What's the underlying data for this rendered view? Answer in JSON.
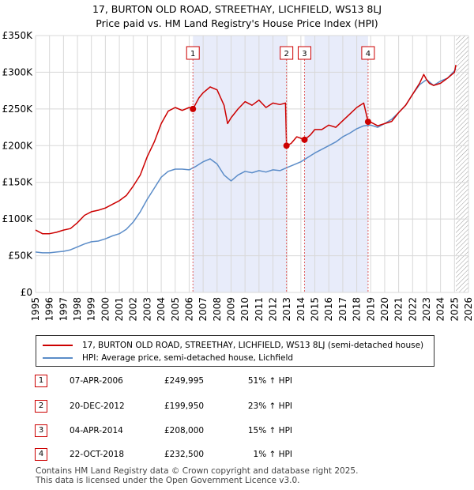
{
  "header": {
    "title_line1": "17, BURTON OLD ROAD, STREETHAY, LICHFIELD, WS13 8LJ",
    "title_line2": "Price paid vs. HM Land Registry's House Price Index (HPI)"
  },
  "chart_data": {
    "type": "line",
    "title": "17, BURTON OLD ROAD, STREETHAY, LICHFIELD, WS13 8LJ — Price paid vs. HM Land Registry's House Price Index (HPI)",
    "xlabel": "",
    "ylabel": "",
    "xlim": [
      1995,
      2026
    ],
    "ylim": [
      0,
      350000
    ],
    "grid": true,
    "x_ticks": [
      "1995",
      "1996",
      "1997",
      "1998",
      "1999",
      "2000",
      "2001",
      "2002",
      "2003",
      "2004",
      "2005",
      "2006",
      "2007",
      "2008",
      "2009",
      "2010",
      "2011",
      "2012",
      "2013",
      "2014",
      "2015",
      "2016",
      "2017",
      "2018",
      "2019",
      "2020",
      "2021",
      "2022",
      "2023",
      "2024",
      "2025",
      "2026"
    ],
    "y_ticks": [
      {
        "value": 0,
        "label": "£0"
      },
      {
        "value": 50000,
        "label": "£50K"
      },
      {
        "value": 100000,
        "label": "£100K"
      },
      {
        "value": 150000,
        "label": "£150K"
      },
      {
        "value": 200000,
        "label": "£200K"
      },
      {
        "value": 250000,
        "label": "£250K"
      },
      {
        "value": 300000,
        "label": "£300K"
      },
      {
        "value": 350000,
        "label": "£350K"
      }
    ],
    "shaded_ranges": [
      [
        2006.27,
        2012.97
      ],
      [
        2014.26,
        2018.81
      ]
    ],
    "hatched_from": 2025.1,
    "series": [
      {
        "name": "17, BURTON OLD ROAD, STREETHAY, LICHFIELD, WS13 8LJ (semi-detached house)",
        "color": "#cc0000",
        "x": [
          1995,
          1995.5,
          1996,
          1996.5,
          1997,
          1997.5,
          1998,
          1998.5,
          1999,
          1999.5,
          2000,
          2000.5,
          2001,
          2001.5,
          2002,
          2002.5,
          2003,
          2003.5,
          2004,
          2004.5,
          2005,
          2005.5,
          2006,
          2006.27,
          2006.7,
          2007,
          2007.5,
          2008,
          2008.5,
          2008.75,
          2009,
          2009.5,
          2010,
          2010.5,
          2011,
          2011.5,
          2012,
          2012.5,
          2012.9,
          2012.97,
          2013.3,
          2013.7,
          2014,
          2014.26,
          2014.7,
          2015,
          2015.5,
          2016,
          2016.5,
          2017,
          2017.5,
          2018,
          2018.5,
          2018.81,
          2019,
          2019.5,
          2020,
          2020.5,
          2021,
          2021.5,
          2022,
          2022.5,
          2022.8,
          2023,
          2023.2,
          2023.5,
          2024,
          2024.5,
          2025,
          2025.1
        ],
        "values": [
          85000,
          80000,
          80000,
          82000,
          85000,
          87000,
          95000,
          105000,
          110000,
          112000,
          115000,
          120000,
          125000,
          132000,
          145000,
          160000,
          185000,
          205000,
          230000,
          247000,
          252000,
          248000,
          252000,
          249995,
          265000,
          272000,
          280000,
          276000,
          255000,
          230000,
          238000,
          250000,
          260000,
          255000,
          262000,
          252000,
          258000,
          256000,
          258000,
          199950,
          203000,
          212000,
          210000,
          208000,
          215000,
          222000,
          222000,
          228000,
          225000,
          234000,
          243000,
          252000,
          258000,
          232500,
          232000,
          227000,
          230000,
          233000,
          245000,
          255000,
          270000,
          285000,
          297000,
          290000,
          285000,
          282000,
          285000,
          292000,
          300000,
          310000
        ]
      },
      {
        "name": "HPI: Average price, semi-detached house, Lichfield",
        "color": "#5b8cc8",
        "x": [
          1995,
          1995.5,
          1996,
          1996.5,
          1997,
          1997.5,
          1998,
          1998.5,
          1999,
          1999.5,
          2000,
          2000.5,
          2001,
          2001.5,
          2002,
          2002.5,
          2003,
          2003.5,
          2004,
          2004.5,
          2005,
          2005.5,
          2006,
          2006.5,
          2007,
          2007.5,
          2008,
          2008.5,
          2009,
          2009.5,
          2010,
          2010.5,
          2011,
          2011.5,
          2012,
          2012.5,
          2013,
          2013.5,
          2014,
          2014.5,
          2015,
          2015.5,
          2016,
          2016.5,
          2017,
          2017.5,
          2018,
          2018.5,
          2019,
          2019.5,
          2020,
          2020.5,
          2021,
          2021.5,
          2022,
          2022.5,
          2023,
          2023.5,
          2024,
          2024.5,
          2025,
          2025.1
        ],
        "values": [
          55000,
          54000,
          54000,
          55000,
          56000,
          58000,
          62000,
          66000,
          69000,
          70000,
          73000,
          77000,
          80000,
          86000,
          96000,
          110000,
          127000,
          142000,
          157000,
          165000,
          168000,
          168000,
          167000,
          172000,
          178000,
          182000,
          175000,
          160000,
          152000,
          160000,
          165000,
          163000,
          166000,
          164000,
          167000,
          166000,
          170000,
          174000,
          178000,
          184000,
          190000,
          195000,
          200000,
          205000,
          212000,
          217000,
          223000,
          227000,
          228000,
          225000,
          230000,
          236000,
          245000,
          255000,
          270000,
          283000,
          290000,
          282000,
          288000,
          292000,
          302000,
          305000
        ]
      }
    ],
    "sales": [
      {
        "label": "1",
        "x": 2006.27,
        "value": 249995
      },
      {
        "label": "2",
        "x": 2012.97,
        "value": 199950
      },
      {
        "label": "3",
        "x": 2014.26,
        "value": 208000
      },
      {
        "label": "4",
        "x": 2018.81,
        "value": 232500
      }
    ]
  },
  "legend": {
    "property_label": "17, BURTON OLD ROAD, STREETHAY, LICHFIELD, WS13 8LJ (semi-detached house)",
    "hpi_label": "HPI: Average price, semi-detached house, Lichfield",
    "property_color": "#cc0000",
    "hpi_color": "#5b8cc8"
  },
  "transactions": [
    {
      "num": "1",
      "date": "07-APR-2006",
      "price": "£249,995",
      "hpi": "51% ↑ HPI"
    },
    {
      "num": "2",
      "date": "20-DEC-2012",
      "price": "£199,950",
      "hpi": "23% ↑ HPI"
    },
    {
      "num": "3",
      "date": "04-APR-2014",
      "price": "£208,000",
      "hpi": "15% ↑ HPI"
    },
    {
      "num": "4",
      "date": "22-OCT-2018",
      "price": "£232,500",
      "hpi": "1% ↑ HPI"
    }
  ],
  "footer": {
    "line1": "Contains HM Land Registry data © Crown copyright and database right 2025.",
    "line2": "This data is licensed under the Open Government Licence v3.0."
  }
}
